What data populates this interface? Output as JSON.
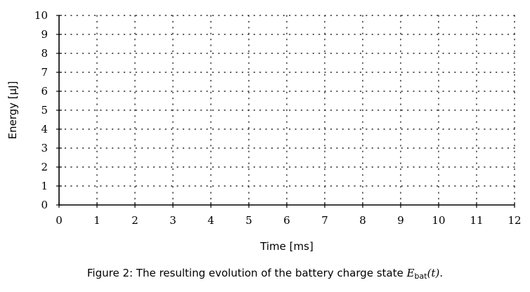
{
  "chart_data": {
    "type": "line",
    "title": "",
    "xlabel": "Time [ms]",
    "ylabel": "Energy [µJ]",
    "xlim": [
      0,
      12
    ],
    "ylim": [
      0,
      10
    ],
    "xticks": [
      0,
      1,
      2,
      3,
      4,
      5,
      6,
      7,
      8,
      9,
      10,
      11,
      12
    ],
    "yticks": [
      0,
      1,
      2,
      3,
      4,
      5,
      6,
      7,
      8,
      9,
      10
    ],
    "grid": true,
    "grid_style": "dotted",
    "series": []
  },
  "caption": {
    "prefix": "Figure 2:  The resulting evolution of the battery charge state ",
    "symbol": "E",
    "subscript": "bat",
    "argument": "(t)",
    "suffix": "."
  }
}
